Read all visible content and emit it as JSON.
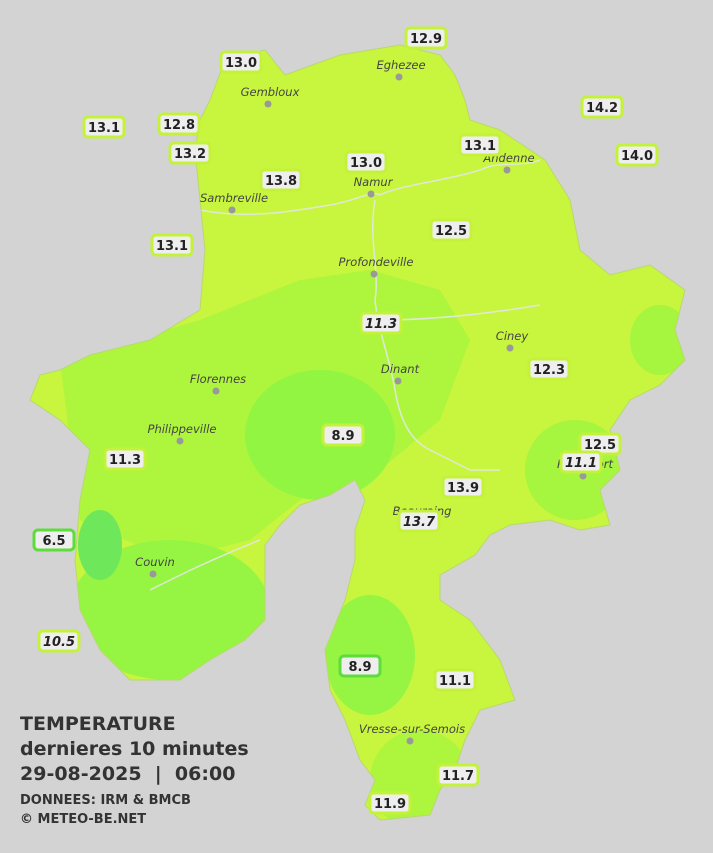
{
  "cities": [
    {
      "name": "Eghezee"
    },
    {
      "name": "Gembloux"
    },
    {
      "name": "Andenne"
    },
    {
      "name": "Namur"
    },
    {
      "name": "Sambreville"
    },
    {
      "name": "Profondeville"
    },
    {
      "name": "Ciney"
    },
    {
      "name": "Dinant"
    },
    {
      "name": "Florennes"
    },
    {
      "name": "Philippeville"
    },
    {
      "name": "Rochefort"
    },
    {
      "name": "Beauraing"
    },
    {
      "name": "Couvin"
    },
    {
      "name": "Vresse-sur-Semois"
    }
  ],
  "stations": [
    {
      "label": "13.0"
    },
    {
      "label": "12.9"
    },
    {
      "label": "14.2"
    },
    {
      "label": "13.1"
    },
    {
      "label": "12.8"
    },
    {
      "label": "13.2"
    },
    {
      "label": "13.1"
    },
    {
      "label": "14.0"
    },
    {
      "label": "13.8"
    },
    {
      "label": "13.0"
    },
    {
      "label": "12.5"
    },
    {
      "label": "13.1"
    },
    {
      "label": "11.3"
    },
    {
      "label": "12.3"
    },
    {
      "label": "8.9"
    },
    {
      "label": "12.5"
    },
    {
      "label": "11.1"
    },
    {
      "label": "11.3"
    },
    {
      "label": "13.9"
    },
    {
      "label": "13.7"
    },
    {
      "label": "6.5"
    },
    {
      "label": "10.5"
    },
    {
      "label": "8.9"
    },
    {
      "label": "11.1"
    },
    {
      "label": "11.7"
    },
    {
      "label": "11.9"
    }
  ],
  "legend": {
    "title": "TEMPERATURE",
    "subtitle": "dernieres 10 minutes",
    "datetime": "29-08-2025  |  06:00",
    "source": "DONNEES: IRM & BMCB",
    "copyright": "© METEO-BE.NET"
  }
}
